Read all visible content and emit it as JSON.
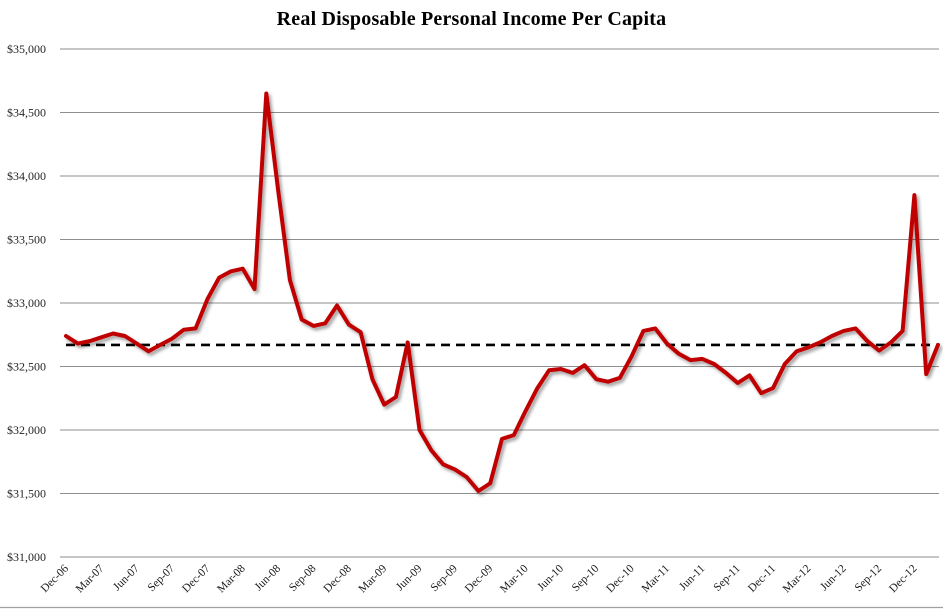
{
  "title": "Real Disposable Personal Income Per Capita",
  "colors": {
    "series_line": "#C00000",
    "reference_line": "#000000",
    "gridline": "#8e8e8e"
  },
  "chart_data": {
    "type": "line",
    "title": "Real Disposable Personal Income Per Capita",
    "xlabel": "",
    "ylabel": "",
    "ylim": [
      31000,
      35000
    ],
    "ytick_step": 500,
    "y_tick_labels": [
      "$31,000",
      "$31,500",
      "$32,000",
      "$32,500",
      "$33,000",
      "$33,500",
      "$34,000",
      "$34,500",
      "$35,000"
    ],
    "x_tick_labels": [
      "Dec-06",
      "Mar-07",
      "Jun-07",
      "Sep-07",
      "Dec-07",
      "Mar-08",
      "Jun-08",
      "Sep-08",
      "Dec-08",
      "Mar-09",
      "Jun-09",
      "Sep-09",
      "Dec-09",
      "Mar-10",
      "Jun-10",
      "Sep-10",
      "Dec-10",
      "Mar-11",
      "Jun-11",
      "Sep-11",
      "Dec-11",
      "Mar-12",
      "Jun-12",
      "Sep-12",
      "Dec-12"
    ],
    "x_tick_every_n_points": 3,
    "grid": "horizontal",
    "legend_position": "none",
    "x": [
      "Dec-06",
      "Jan-07",
      "Feb-07",
      "Mar-07",
      "Apr-07",
      "May-07",
      "Jun-07",
      "Jul-07",
      "Aug-07",
      "Sep-07",
      "Oct-07",
      "Nov-07",
      "Dec-07",
      "Jan-08",
      "Feb-08",
      "Mar-08",
      "Apr-08",
      "May-08",
      "Jun-08",
      "Jul-08",
      "Aug-08",
      "Sep-08",
      "Oct-08",
      "Nov-08",
      "Dec-08",
      "Jan-09",
      "Feb-09",
      "Mar-09",
      "Apr-09",
      "May-09",
      "Jun-09",
      "Jul-09",
      "Aug-09",
      "Sep-09",
      "Oct-09",
      "Nov-09",
      "Dec-09",
      "Jan-10",
      "Feb-10",
      "Mar-10",
      "Apr-10",
      "May-10",
      "Jun-10",
      "Jul-10",
      "Aug-10",
      "Sep-10",
      "Oct-10",
      "Nov-10",
      "Dec-10",
      "Jan-11",
      "Feb-11",
      "Mar-11",
      "Apr-11",
      "May-11",
      "Jun-11",
      "Jul-11",
      "Aug-11",
      "Sep-11",
      "Oct-11",
      "Nov-11",
      "Dec-11",
      "Jan-12",
      "Feb-12",
      "Mar-12",
      "Apr-12",
      "May-12",
      "Jun-12",
      "Jul-12",
      "Aug-12",
      "Sep-12",
      "Oct-12",
      "Nov-12",
      "Dec-12",
      "Jan-13",
      "Feb-13"
    ],
    "series": [
      {
        "name": "real-disposable-personal-income-per-capita",
        "color": "#C00000",
        "values": [
          32740,
          32680,
          32700,
          32730,
          32760,
          32740,
          32680,
          32620,
          32670,
          32720,
          32790,
          32800,
          33030,
          33200,
          33250,
          33270,
          33110,
          34650,
          33890,
          33180,
          32870,
          32820,
          32840,
          32980,
          32830,
          32770,
          32400,
          32200,
          32260,
          32690,
          32000,
          31840,
          31730,
          31690,
          31630,
          31520,
          31580,
          31930,
          31960,
          32150,
          32330,
          32470,
          32480,
          32450,
          32510,
          32400,
          32380,
          32410,
          32580,
          32780,
          32800,
          32680,
          32600,
          32550,
          32560,
          32520,
          32450,
          32370,
          32430,
          32290,
          32330,
          32520,
          32620,
          32650,
          32690,
          32740,
          32780,
          32800,
          32700,
          32625,
          32690,
          32780,
          33850,
          32440,
          32670
        ]
      }
    ],
    "reference_line": {
      "value": 32670,
      "style": "dashed",
      "color": "#000000"
    }
  }
}
